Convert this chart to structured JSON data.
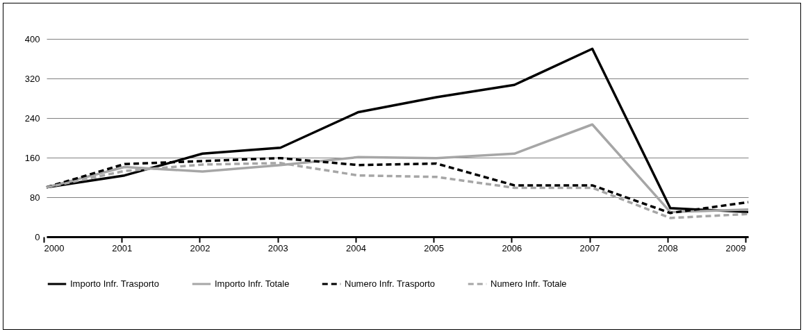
{
  "chart_data": {
    "type": "line",
    "x": [
      2000,
      2001,
      2002,
      2003,
      2004,
      2005,
      2006,
      2007,
      2008,
      2009
    ],
    "xlim": [
      2000,
      2009
    ],
    "xticks": [
      2000,
      2001,
      2002,
      2003,
      2004,
      2005,
      2006,
      2007,
      2008,
      2009
    ],
    "ylim": [
      0,
      400
    ],
    "yticks": [
      0,
      80,
      160,
      240,
      320,
      400
    ],
    "grid": "y",
    "legend": "bottom",
    "marker": "none",
    "series": [
      {
        "name": "Importo Infr. Trasporto",
        "color": "#000000",
        "line_style": "solid",
        "values": [
          100,
          124,
          168,
          180,
          252,
          282,
          307,
          380,
          58,
          50
        ]
      },
      {
        "name": "Importo Infr. Totale",
        "color": "#a6a6a6",
        "line_style": "solid",
        "values": [
          100,
          141,
          132,
          145,
          161,
          159,
          168,
          227,
          50,
          55
        ]
      },
      {
        "name": "Numero Infr. Trasporto",
        "color": "#000000",
        "line_style": "dashed",
        "values": [
          100,
          147,
          153,
          159,
          145,
          148,
          104,
          104,
          48,
          70
        ]
      },
      {
        "name": "Numero Infr. Totale",
        "color": "#a6a6a6",
        "line_style": "dashed",
        "values": [
          100,
          133,
          146,
          149,
          124,
          121,
          99,
          99,
          38,
          46
        ]
      }
    ]
  }
}
